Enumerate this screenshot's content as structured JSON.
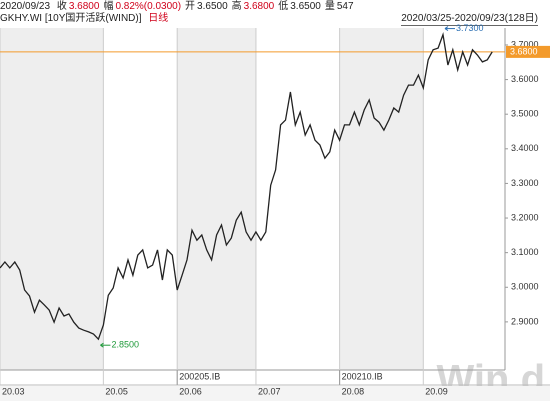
{
  "header": {
    "date": "2020/09/23",
    "fields": [
      {
        "label": "收",
        "value": "3.6800",
        "color": "#d0021b"
      },
      {
        "label": "幅",
        "value": "0.82%(0.0300)",
        "color": "#d0021b"
      },
      {
        "label": "开",
        "value": "3.6500",
        "color": "#222222"
      },
      {
        "label": "高",
        "value": "3.6800",
        "color": "#d0021b"
      },
      {
        "label": "低",
        "value": "3.6500",
        "color": "#222222"
      },
      {
        "label": "量",
        "value": "547",
        "color": "#222222"
      }
    ],
    "instrument": "GKHY.WI [10Y国开活跃(WIND)]",
    "period": "日线",
    "range": "2020/03/25-2020/09/23(128日)"
  },
  "chart_data": {
    "type": "line",
    "color": "#222222",
    "values": [
      3.056,
      3.073,
      3.056,
      3.073,
      3.05,
      2.992,
      2.975,
      2.928,
      2.963,
      2.949,
      2.934,
      2.899,
      2.94,
      2.917,
      2.923,
      2.899,
      2.882,
      2.876,
      2.871,
      2.865,
      2.85,
      2.891,
      2.977,
      2.998,
      3.056,
      3.027,
      3.079,
      3.035,
      3.093,
      3.108,
      3.056,
      3.064,
      3.108,
      3.021,
      3.108,
      3.093,
      2.992,
      3.035,
      3.079,
      3.165,
      3.136,
      3.151,
      3.108,
      3.079,
      3.151,
      3.18,
      3.122,
      3.142,
      3.194,
      3.217,
      3.16,
      3.136,
      3.16,
      3.136,
      3.16,
      3.295,
      3.339,
      3.469,
      3.483,
      3.564,
      3.469,
      3.506,
      3.44,
      3.469,
      3.425,
      3.411,
      3.373,
      3.391,
      3.454,
      3.425,
      3.469,
      3.469,
      3.506,
      3.469,
      3.512,
      3.541,
      3.489,
      3.477,
      3.454,
      3.483,
      3.518,
      3.506,
      3.555,
      3.584,
      3.584,
      3.613,
      3.576,
      3.657,
      3.686,
      3.691,
      3.73,
      3.642,
      3.686,
      3.628,
      3.68,
      3.642,
      3.686,
      3.671,
      3.651,
      3.657,
      3.68
    ],
    "value_labels": [
      null,
      null,
      null,
      null,
      null,
      null,
      null,
      null,
      null,
      null,
      null,
      null,
      null,
      null,
      null,
      null,
      null,
      null,
      null,
      null,
      "2.8500",
      null,
      null,
      null,
      null,
      null,
      null,
      null,
      null,
      null,
      null,
      null,
      null,
      null,
      null,
      null,
      null,
      null,
      null,
      null,
      null,
      null,
      null,
      null,
      null,
      null,
      null,
      null,
      null,
      null,
      null,
      null,
      null,
      null,
      null,
      null,
      null,
      null,
      null,
      null,
      null,
      null,
      null,
      null,
      null,
      null,
      null,
      null,
      null,
      null,
      null,
      null,
      null,
      null,
      null,
      null,
      null,
      null,
      null,
      null,
      null,
      null,
      null,
      null,
      null,
      null,
      null,
      null,
      null,
      null,
      "3.7300",
      null,
      null,
      null,
      null,
      null,
      null,
      null,
      null,
      null,
      null
    ],
    "annotation_colors": [
      "#1f9a3a",
      "#2b6fb3"
    ],
    "xlim": [
      0,
      102.6
    ],
    "xticks": [
      {
        "value": 0,
        "label": "20.03"
      },
      {
        "value": 21,
        "label": "20.05"
      },
      {
        "value": 36,
        "label": "20.06"
      },
      {
        "value": 52,
        "label": "20.07"
      },
      {
        "value": 69,
        "label": "20.08"
      },
      {
        "value": 86,
        "label": "20.09"
      }
    ],
    "contract_ticks": [
      {
        "value": 36,
        "label": "200205.IB"
      },
      {
        "value": 69,
        "label": "200210.IB"
      }
    ],
    "ylim": [
      2.761,
      3.749
    ],
    "yticks": [
      {
        "value": 2.9,
        "label": "2.9000"
      },
      {
        "value": 3.0,
        "label": "3.0000"
      },
      {
        "value": 3.1,
        "label": "3.1000"
      },
      {
        "value": 3.2,
        "label": "3.2000"
      },
      {
        "value": 3.3,
        "label": "3.3000"
      },
      {
        "value": 3.4,
        "label": "3.4000"
      },
      {
        "value": 3.5,
        "label": "3.5000"
      },
      {
        "value": 3.6,
        "label": "3.6000"
      },
      {
        "value": 3.7,
        "label": "3.7000"
      }
    ],
    "last_value": {
      "value": 3.68,
      "label": "3.6800",
      "color": "#f39a2b"
    },
    "shading": true,
    "shade_color": "#eeeeee",
    "watermark": "Win.d"
  }
}
